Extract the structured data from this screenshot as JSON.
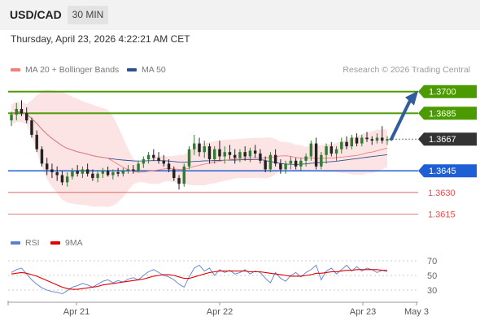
{
  "header": {
    "symbol": "USD/CAD",
    "timeframe": "30 MIN"
  },
  "date_line": "Thursday, April 23, 2026 4:22:21 AM CET",
  "legend": {
    "ma20": "MA 20 + Bollinger Bands",
    "ma50": "MA 50",
    "ma20_color": "#f08080",
    "ma50_color": "#2f4f8f"
  },
  "credit": "Research © 2026 Trading Central",
  "rsi_legend": {
    "rsi": "RSI",
    "ma": "9MA",
    "rsi_color": "#5b7fd6",
    "ma_color": "#e00000"
  },
  "colors": {
    "up": "#2e7d32",
    "down": "#222222",
    "resistance": "#4a9a00",
    "support": "#1f5fd6",
    "minor_support": "#e05050",
    "current": "#333333",
    "bollinger": "#fde4e4",
    "arrow": "#2f5d9e"
  },
  "chart_data": [
    {
      "type": "candlestick",
      "ylim": [
        1.36,
        1.371
      ],
      "x_ticks": [
        "Apr 21",
        "Apr 22",
        "Apr 23",
        "May 3"
      ],
      "levels": [
        {
          "value": 1.37,
          "label": "1.3700",
          "kind": "resistance"
        },
        {
          "value": 1.3685,
          "label": "1.3685",
          "kind": "resistance"
        },
        {
          "value": 1.3667,
          "label": "1.3667",
          "kind": "current"
        },
        {
          "value": 1.3645,
          "label": "1.3645",
          "kind": "support"
        },
        {
          "value": 1.363,
          "label": "1.3630",
          "kind": "minor_support"
        },
        {
          "value": 1.3615,
          "label": "1.3615",
          "kind": "minor_support"
        }
      ],
      "forecast": {
        "from": 1.3667,
        "to": 1.37,
        "direction": "up"
      },
      "candles": [
        [
          1.368,
          1.3686,
          1.3676,
          1.3684
        ],
        [
          1.3684,
          1.3692,
          1.368,
          1.3688
        ],
        [
          1.3688,
          1.3694,
          1.3683,
          1.3685
        ],
        [
          1.3685,
          1.3689,
          1.3678,
          1.368
        ],
        [
          1.368,
          1.3682,
          1.3668,
          1.367
        ],
        [
          1.367,
          1.3673,
          1.3658,
          1.366
        ],
        [
          1.366,
          1.3662,
          1.3648,
          1.365
        ],
        [
          1.365,
          1.3654,
          1.3642,
          1.3646
        ],
        [
          1.3646,
          1.365,
          1.364,
          1.3644
        ],
        [
          1.3644,
          1.3648,
          1.3638,
          1.3642
        ],
        [
          1.3642,
          1.3645,
          1.3635,
          1.3637
        ],
        [
          1.3637,
          1.3644,
          1.3634,
          1.3641
        ],
        [
          1.3641,
          1.3647,
          1.3639,
          1.3645
        ],
        [
          1.3645,
          1.3649,
          1.3641,
          1.3643
        ],
        [
          1.3643,
          1.3648,
          1.364,
          1.3646
        ],
        [
          1.3646,
          1.365,
          1.3641,
          1.3643
        ],
        [
          1.3643,
          1.3646,
          1.3638,
          1.364
        ],
        [
          1.364,
          1.3645,
          1.3637,
          1.3643
        ],
        [
          1.3643,
          1.3647,
          1.364,
          1.3645
        ],
        [
          1.3645,
          1.3648,
          1.3641,
          1.3642
        ],
        [
          1.3642,
          1.3646,
          1.3639,
          1.3644
        ],
        [
          1.3644,
          1.3647,
          1.3641,
          1.3643
        ],
        [
          1.3643,
          1.3647,
          1.3641,
          1.3645
        ],
        [
          1.3645,
          1.3649,
          1.3643,
          1.3646
        ],
        [
          1.3646,
          1.3649,
          1.3643,
          1.3645
        ],
        [
          1.3645,
          1.3652,
          1.3644,
          1.365
        ],
        [
          1.365,
          1.3655,
          1.3647,
          1.3653
        ],
        [
          1.3653,
          1.3658,
          1.365,
          1.3656
        ],
        [
          1.3656,
          1.366,
          1.3652,
          1.3654
        ],
        [
          1.3654,
          1.3658,
          1.365,
          1.3652
        ],
        [
          1.3652,
          1.3656,
          1.3648,
          1.365
        ],
        [
          1.365,
          1.3653,
          1.3644,
          1.3646
        ],
        [
          1.3646,
          1.3648,
          1.3638,
          1.364
        ],
        [
          1.364,
          1.3642,
          1.3632,
          1.3636
        ],
        [
          1.3636,
          1.365,
          1.3634,
          1.3648
        ],
        [
          1.3648,
          1.3662,
          1.3646,
          1.366
        ],
        [
          1.366,
          1.367,
          1.3656,
          1.3664
        ],
        [
          1.3664,
          1.3668,
          1.3655,
          1.3658
        ],
        [
          1.3658,
          1.3666,
          1.3654,
          1.3662
        ],
        [
          1.3662,
          1.3664,
          1.365,
          1.3653
        ],
        [
          1.3653,
          1.3662,
          1.365,
          1.366
        ],
        [
          1.366,
          1.3666,
          1.3652,
          1.3655
        ],
        [
          1.3655,
          1.3662,
          1.365,
          1.3658
        ],
        [
          1.3658,
          1.3663,
          1.3653,
          1.3656
        ],
        [
          1.3656,
          1.366,
          1.365,
          1.3654
        ],
        [
          1.3654,
          1.366,
          1.3651,
          1.3658
        ],
        [
          1.3658,
          1.3662,
          1.3652,
          1.3655
        ],
        [
          1.3655,
          1.3661,
          1.3651,
          1.3659
        ],
        [
          1.3659,
          1.3663,
          1.3654,
          1.3657
        ],
        [
          1.3657,
          1.366,
          1.365,
          1.3652
        ],
        [
          1.3652,
          1.3655,
          1.3644,
          1.3646
        ],
        [
          1.3646,
          1.3658,
          1.3644,
          1.3656
        ],
        [
          1.3656,
          1.366,
          1.3648,
          1.365
        ],
        [
          1.365,
          1.3653,
          1.3643,
          1.3646
        ],
        [
          1.3646,
          1.3652,
          1.3643,
          1.365
        ],
        [
          1.365,
          1.3655,
          1.3646,
          1.3652
        ],
        [
          1.3652,
          1.3654,
          1.3646,
          1.3648
        ],
        [
          1.3648,
          1.3654,
          1.3645,
          1.3652
        ],
        [
          1.3652,
          1.3657,
          1.3648,
          1.3655
        ],
        [
          1.3655,
          1.3666,
          1.3652,
          1.3664
        ],
        [
          1.3664,
          1.3668,
          1.3646,
          1.3648
        ],
        [
          1.3648,
          1.3658,
          1.3646,
          1.3656
        ],
        [
          1.3656,
          1.3664,
          1.365,
          1.3662
        ],
        [
          1.3662,
          1.3665,
          1.3655,
          1.3657
        ],
        [
          1.3657,
          1.3662,
          1.3652,
          1.366
        ],
        [
          1.366,
          1.3668,
          1.3657,
          1.3665
        ],
        [
          1.3665,
          1.3669,
          1.366,
          1.3662
        ],
        [
          1.3662,
          1.367,
          1.366,
          1.3668
        ],
        [
          1.3668,
          1.3671,
          1.3662,
          1.3664
        ],
        [
          1.3664,
          1.367,
          1.3662,
          1.3668
        ],
        [
          1.3668,
          1.3672,
          1.3665,
          1.3667
        ],
        [
          1.3667,
          1.3669,
          1.3663,
          1.3666
        ],
        [
          1.3666,
          1.3671,
          1.3664,
          1.3668
        ],
        [
          1.3668,
          1.3676,
          1.3664,
          1.3666
        ],
        [
          1.3666,
          1.3669,
          1.3663,
          1.3667
        ]
      ]
    },
    {
      "type": "line",
      "ylim": [
        20,
        80
      ],
      "y_ticks": [
        70,
        50,
        30
      ],
      "series": [
        {
          "name": "RSI",
          "values": [
            54,
            58,
            60,
            52,
            44,
            38,
            33,
            30,
            28,
            27,
            25,
            29,
            34,
            36,
            39,
            37,
            34,
            38,
            42,
            44,
            40,
            43,
            41,
            45,
            47,
            44,
            50,
            55,
            58,
            54,
            50,
            48,
            44,
            38,
            34,
            48,
            60,
            64,
            56,
            60,
            50,
            58,
            54,
            57,
            52,
            54,
            58,
            52,
            56,
            54,
            46,
            40,
            54,
            46,
            42,
            50,
            54,
            48,
            54,
            58,
            64,
            44,
            56,
            60,
            52,
            58,
            64,
            56,
            62,
            56,
            60,
            58,
            54,
            57,
            55
          ]
        },
        {
          "name": "9MA",
          "values": [
            52,
            53,
            54,
            53,
            51,
            49,
            46,
            43,
            40,
            37,
            34,
            32,
            31,
            31,
            32,
            33,
            34,
            35,
            37,
            38,
            39,
            40,
            41,
            42,
            43,
            44,
            45,
            47,
            49,
            50,
            51,
            51,
            50,
            48,
            46,
            46,
            48,
            50,
            52,
            54,
            55,
            56,
            56,
            56,
            56,
            56,
            56,
            55,
            55,
            55,
            54,
            53,
            52,
            51,
            50,
            49,
            49,
            49,
            50,
            51,
            53,
            53,
            54,
            55,
            55,
            56,
            57,
            57,
            58,
            58,
            58,
            58,
            58,
            57,
            57
          ]
        }
      ]
    }
  ]
}
